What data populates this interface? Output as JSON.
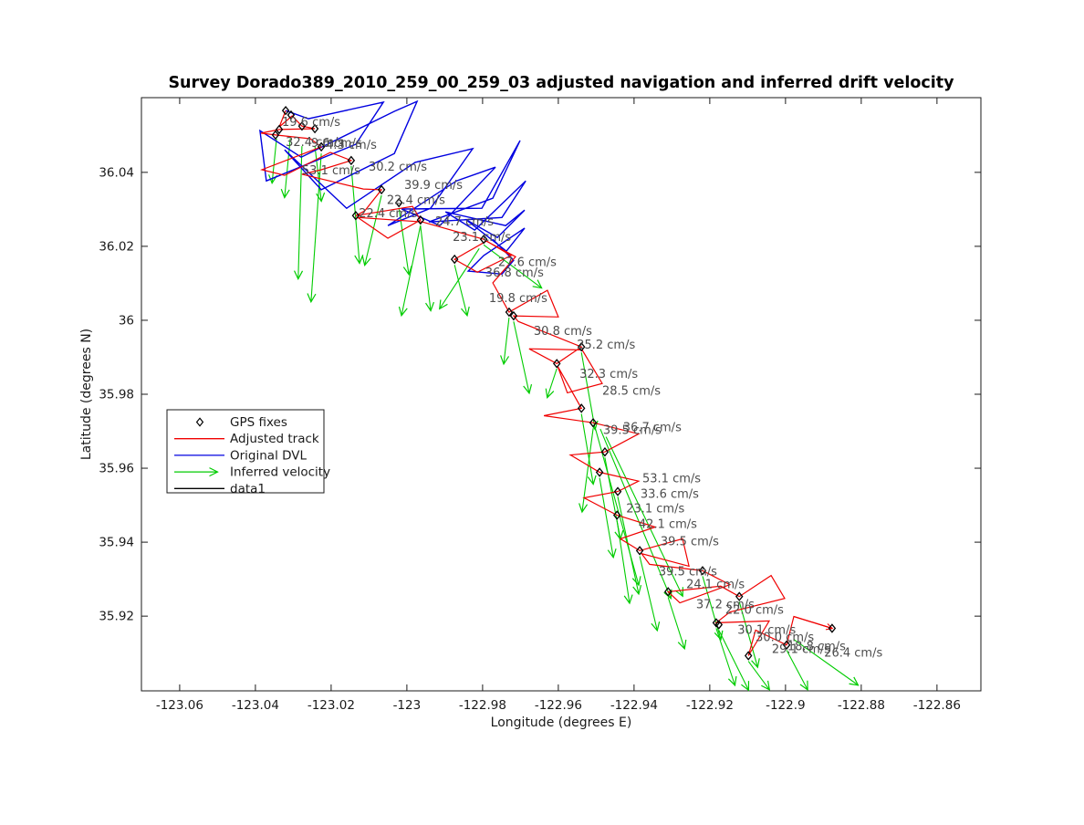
{
  "figure": {
    "title": "Survey Dorado389_2010_259_00_259_03 adjusted navigation and inferred drift velocity"
  },
  "chart_data": {
    "type": "line",
    "title": "Survey Dorado389_2010_259_00_259_03 adjusted navigation and inferred drift velocity",
    "xlabel": "Longitude (degrees E)",
    "ylabel": "Latitude (degrees N)",
    "xlim": [
      -123.0701,
      -122.8484
    ],
    "ylim": [
      35.8998,
      36.0602
    ],
    "grid": false,
    "xticks": [
      -123.06,
      -123.04,
      -123.02,
      -123.0,
      -122.98,
      -122.96,
      -122.94,
      -122.92,
      -122.9,
      -122.88,
      -122.86
    ],
    "xtick_labels": [
      "-123.06",
      "-123.04",
      "-123.02",
      "-123",
      "-122.98",
      "-122.96",
      "-122.94",
      "-122.92",
      "-122.9",
      "-122.88",
      "-122.86"
    ],
    "yticks": [
      36.04,
      36.02,
      36.0,
      35.98,
      35.96,
      35.94,
      35.92
    ],
    "ytick_labels": [
      "36.04",
      "36.02",
      "36",
      "35.98",
      "35.96",
      "35.94",
      "35.92"
    ],
    "colors": {
      "adjusted_track": "#f00000",
      "original_dvl": "#0000e0",
      "inferred_velocity": "#00cc00",
      "gps_fixes": "#000000",
      "data1": "#000000",
      "velocity_label": "#4d4d4d"
    },
    "legend": {
      "position": "middle-left",
      "entries": [
        {
          "label": "GPS fixes",
          "type": "marker",
          "color": "#000000"
        },
        {
          "label": "Adjusted track",
          "type": "line",
          "color": "#f00000"
        },
        {
          "label": "Original DVL",
          "type": "line",
          "color": "#0000e0"
        },
        {
          "label": "Inferred velocity",
          "type": "arrow",
          "color": "#00cc00"
        },
        {
          "label": "data1",
          "type": "line",
          "color": "#000000"
        }
      ]
    },
    "series": {
      "adjusted_track": {
        "name": "Adjusted track",
        "points": [
          [
            -123.032,
            36.0567
          ],
          [
            -123.0337,
            36.0523
          ],
          [
            -123.0303,
            36.0553
          ],
          [
            -123.0277,
            36.0525
          ],
          [
            -123.0243,
            36.0518
          ],
          [
            -123.0337,
            36.0516
          ],
          [
            -123.0385,
            36.0506
          ],
          [
            -123.0347,
            36.0501
          ],
          [
            -123.0255,
            36.0491
          ],
          [
            -123.0226,
            36.0469
          ],
          [
            -123.0383,
            36.0407
          ],
          [
            -123.0323,
            36.0392
          ],
          [
            -123.0202,
            36.0454
          ],
          [
            -123.0147,
            36.0432
          ],
          [
            -123.0226,
            36.0407
          ],
          [
            -123.0277,
            36.0395
          ],
          [
            -123.0115,
            36.0355
          ],
          [
            -123.0067,
            36.0353
          ],
          [
            -123.0111,
            36.0296
          ],
          [
            -123.0135,
            36.0283
          ],
          [
            -122.9985,
            36.0308
          ],
          [
            -122.9964,
            36.0271
          ],
          [
            -123.005,
            36.0222
          ],
          [
            -123.013,
            36.0278
          ],
          [
            -122.9959,
            36.0266
          ],
          [
            -122.9797,
            36.0219
          ],
          [
            -122.9725,
            36.0175
          ],
          [
            -122.9814,
            36.013
          ],
          [
            -122.9874,
            36.0165
          ],
          [
            -122.979,
            36.0214
          ],
          [
            -122.9713,
            36.0172
          ],
          [
            -122.9773,
            36.0101
          ],
          [
            -122.973,
            36.0022
          ],
          [
            -122.9629,
            36.0081
          ],
          [
            -122.96,
            36.0009
          ],
          [
            -122.9718,
            36.0012
          ],
          [
            -122.9706,
            35.9997
          ],
          [
            -122.9539,
            35.9928
          ],
          [
            -122.9604,
            35.9883
          ],
          [
            -122.9677,
            35.9923
          ],
          [
            -122.9537,
            35.992
          ],
          [
            -122.9484,
            35.9829
          ],
          [
            -122.9576,
            35.9804
          ],
          [
            -122.9602,
            35.9876
          ],
          [
            -122.9539,
            35.9762
          ],
          [
            -122.9638,
            35.9742
          ],
          [
            -122.9508,
            35.9723
          ],
          [
            -122.9388,
            35.9693
          ],
          [
            -122.9477,
            35.9644
          ],
          [
            -122.9568,
            35.9636
          ],
          [
            -122.9491,
            35.9589
          ],
          [
            -122.9388,
            35.9565
          ],
          [
            -122.9443,
            35.9537
          ],
          [
            -122.9532,
            35.952
          ],
          [
            -122.9445,
            35.9473
          ],
          [
            -122.9344,
            35.9441
          ],
          [
            -122.9436,
            35.9409
          ],
          [
            -122.9385,
            35.9377
          ],
          [
            -122.9272,
            35.9409
          ],
          [
            -122.9255,
            35.9335
          ],
          [
            -122.938,
            35.9369
          ],
          [
            -122.9359,
            35.934
          ],
          [
            -122.9219,
            35.9323
          ],
          [
            -122.9147,
            35.9285
          ],
          [
            -122.9279,
            35.9236
          ],
          [
            -122.931,
            35.9266
          ],
          [
            -122.9171,
            35.9281
          ],
          [
            -122.9122,
            35.9253
          ],
          [
            -122.9038,
            35.931
          ],
          [
            -122.9002,
            35.9248
          ],
          [
            -122.9147,
            35.9211
          ],
          [
            -122.9183,
            35.9182
          ],
          [
            -122.9043,
            35.9187
          ],
          [
            -122.9098,
            35.9093
          ],
          [
            -122.9079,
            35.9162
          ],
          [
            -122.8997,
            35.9122
          ],
          [
            -122.8978,
            35.9199
          ],
          [
            -122.8877,
            35.9167
          ]
        ]
      },
      "original_dvl": {
        "name": "Original DVL",
        "points": [
          [
            -123.032,
            36.0567
          ],
          [
            -123.026,
            36.0545
          ],
          [
            -123.0062,
            36.059
          ],
          [
            -123.0135,
            36.0476
          ],
          [
            -123.0371,
            36.0377
          ],
          [
            -123.0388,
            36.0513
          ],
          [
            -123.0279,
            36.0441
          ],
          [
            -123.0033,
            36.0565
          ],
          [
            -122.9973,
            36.0592
          ],
          [
            -123.0033,
            36.0451
          ],
          [
            -123.0226,
            36.0353
          ],
          [
            -123.0323,
            36.0461
          ],
          [
            -123.0159,
            36.0303
          ],
          [
            -122.9978,
            36.0427
          ],
          [
            -122.9826,
            36.0464
          ],
          [
            -122.9937,
            36.0303
          ],
          [
            -123.005,
            36.0256
          ],
          [
            -122.9869,
            36.0377
          ],
          [
            -122.9766,
            36.0414
          ],
          [
            -122.9913,
            36.0256
          ],
          [
            -123.0014,
            36.0301
          ],
          [
            -122.9802,
            36.0303
          ],
          [
            -122.9701,
            36.0486
          ],
          [
            -122.9773,
            36.033
          ],
          [
            -122.9942,
            36.0266
          ],
          [
            -122.9749,
            36.0278
          ],
          [
            -122.9686,
            36.0377
          ],
          [
            -122.9821,
            36.0244
          ],
          [
            -122.9898,
            36.0293
          ],
          [
            -122.9739,
            36.0256
          ],
          [
            -122.9689,
            36.0298
          ],
          [
            -122.9761,
            36.0224
          ],
          [
            -122.9845,
            36.0273
          ],
          [
            -122.9737,
            36.0187
          ],
          [
            -122.9689,
            36.0249
          ],
          [
            -122.9797,
            36.0175
          ],
          [
            -122.9838,
            36.0133
          ],
          [
            -122.9749,
            36.0125
          ],
          [
            -122.9718,
            36.0162
          ],
          [
            -122.9773,
            36.0219
          ]
        ]
      },
      "gps_fixes": {
        "name": "GPS fixes",
        "marker": "diamond",
        "points": [
          [
            -123.032,
            36.0567
          ],
          [
            -123.0306,
            36.0555
          ],
          [
            -123.0277,
            36.0525
          ],
          [
            -123.0243,
            36.0518
          ],
          [
            -123.0337,
            36.0516
          ],
          [
            -123.0347,
            36.0501
          ],
          [
            -123.0226,
            36.0469
          ],
          [
            -123.0147,
            36.0432
          ],
          [
            -123.0067,
            36.0353
          ],
          [
            -123.0021,
            36.0318
          ],
          [
            -123.0135,
            36.0283
          ],
          [
            -122.9964,
            36.0271
          ],
          [
            -122.9797,
            36.0219
          ],
          [
            -122.9874,
            36.0165
          ],
          [
            -122.973,
            36.0022
          ],
          [
            -122.9718,
            36.0012
          ],
          [
            -122.9539,
            35.9928
          ],
          [
            -122.9604,
            35.9883
          ],
          [
            -122.9539,
            35.9762
          ],
          [
            -122.9508,
            35.9723
          ],
          [
            -122.9477,
            35.9644
          ],
          [
            -122.9491,
            35.9589
          ],
          [
            -122.9443,
            35.9537
          ],
          [
            -122.9445,
            35.9473
          ],
          [
            -122.9385,
            35.9377
          ],
          [
            -122.9219,
            35.9323
          ],
          [
            -122.931,
            35.9266
          ],
          [
            -122.9122,
            35.9253
          ],
          [
            -122.9183,
            35.9182
          ],
          [
            -122.9176,
            35.9177
          ],
          [
            -122.9098,
            35.9093
          ],
          [
            -122.8997,
            35.9122
          ],
          [
            -122.8877,
            35.9167
          ]
        ]
      },
      "inferred_velocity": {
        "name": "Inferred velocity",
        "arrows": [
          [
            -123.0308,
            36.0491,
            -123.0323,
            36.0333
          ],
          [
            -123.0277,
            36.0471,
            -123.0287,
            36.0113
          ],
          [
            -123.0243,
            36.0471,
            -123.0226,
            36.0323
          ],
          [
            -123.0344,
            36.0491,
            -123.0356,
            36.0372
          ],
          [
            -123.0226,
            36.0451,
            -123.0253,
            36.0051
          ],
          [
            -123.0147,
            36.0417,
            -123.0125,
            36.0155
          ],
          [
            -123.0067,
            36.0338,
            -123.0111,
            36.015
          ],
          [
            -123.0021,
            36.0303,
            -122.9995,
            36.0125
          ],
          [
            -122.9964,
            36.0256,
            -122.9937,
            36.0027
          ],
          [
            -122.9964,
            36.0256,
            -123.0014,
            36.0014
          ],
          [
            -122.9797,
            36.0204,
            -122.9645,
            36.0088
          ],
          [
            -122.9874,
            36.015,
            -122.9841,
            36.0014
          ],
          [
            -122.9809,
            36.0194,
            -122.9913,
            36.0032
          ],
          [
            -122.973,
            36.0007,
            -122.9744,
            35.9883
          ],
          [
            -122.9718,
            35.9997,
            -122.9677,
            35.9804
          ],
          [
            -122.9539,
            35.9913,
            -122.9503,
            35.9706
          ],
          [
            -122.9604,
            35.9869,
            -122.9629,
            35.9792
          ],
          [
            -122.9539,
            35.9747,
            -122.9508,
            35.9558
          ],
          [
            -122.9508,
            35.9708,
            -122.9537,
            35.9483
          ],
          [
            -122.9477,
            35.9629,
            -122.9436,
            35.9409
          ],
          [
            -122.9491,
            35.9574,
            -122.9455,
            35.936
          ],
          [
            -122.9443,
            35.9523,
            -122.9388,
            35.9261
          ],
          [
            -122.9445,
            35.9458,
            -122.9412,
            35.9236
          ],
          [
            -122.9385,
            35.9362,
            -122.9339,
            35.9162
          ],
          [
            -122.9219,
            35.9308,
            -122.9171,
            35.9138
          ],
          [
            -122.931,
            35.9251,
            -122.9267,
            35.9113
          ],
          [
            -122.9122,
            35.9239,
            -122.9074,
            35.9063
          ],
          [
            -122.9183,
            35.9167,
            -122.9134,
            35.9014
          ],
          [
            -122.9176,
            35.9162,
            -122.9098,
            35.9001
          ],
          [
            -122.9098,
            35.9078,
            -122.9043,
            35.9002
          ],
          [
            -122.8997,
            35.9108,
            -122.8942,
            35.9002
          ],
          [
            -122.8978,
            35.9137,
            -122.8809,
            35.9014
          ],
          [
            -122.9489,
            35.9706,
            -122.9303,
            35.9249
          ],
          [
            -122.9474,
            35.9685,
            -122.9272,
            35.9255
          ],
          [
            -122.9503,
            35.9711,
            -122.9388,
            35.9285
          ]
        ]
      },
      "data1": {
        "name": "data1",
        "points": []
      }
    },
    "velocity_labels": [
      {
        "text": "19.6 cm/s",
        "lon": -123.033,
        "lat": 36.0535
      },
      {
        "text": "32.4 cm/s",
        "lon": -123.032,
        "lat": 36.0481
      },
      {
        "text": "9.6 cm/s",
        "lon": -123.0253,
        "lat": 36.0479
      },
      {
        "text": "4.3 cm/s",
        "lon": -123.0214,
        "lat": 36.0474
      },
      {
        "text": "53.1 cm/s",
        "lon": -123.0277,
        "lat": 36.0404
      },
      {
        "text": "30.2 cm/s",
        "lon": -123.0101,
        "lat": 36.0414
      },
      {
        "text": "39.9 cm/s",
        "lon": -123.0007,
        "lat": 36.0365
      },
      {
        "text": "22.4 cm/s",
        "lon": -123.0053,
        "lat": 36.0325
      },
      {
        "text": "22.4 cm/s",
        "lon": -123.0127,
        "lat": 36.0288
      },
      {
        "text": "24.7 cm/s",
        "lon": -122.9925,
        "lat": 36.0266
      },
      {
        "text": "23.1 cm/s",
        "lon": -122.9879,
        "lat": 36.0224
      },
      {
        "text": "27.6 cm/s",
        "lon": -122.9759,
        "lat": 36.0157
      },
      {
        "text": "36.8 cm/s",
        "lon": -122.9793,
        "lat": 36.0128
      },
      {
        "text": "19.8 cm/s",
        "lon": -122.9783,
        "lat": 36.0059
      },
      {
        "text": "30.8 cm/s",
        "lon": -122.9665,
        "lat": 35.997
      },
      {
        "text": "25.2 cm/s",
        "lon": -122.9551,
        "lat": 35.9933
      },
      {
        "text": "32.3 cm/s",
        "lon": -122.9544,
        "lat": 35.9854
      },
      {
        "text": "28.5 cm/s",
        "lon": -122.9484,
        "lat": 35.9809
      },
      {
        "text": "39.5 cm/s",
        "lon": -122.9482,
        "lat": 35.9703
      },
      {
        "text": "36.7 cm/s",
        "lon": -122.9429,
        "lat": 35.971
      },
      {
        "text": "53.1 cm/s",
        "lon": -122.9378,
        "lat": 35.9572
      },
      {
        "text": "33.6 cm/s",
        "lon": -122.9383,
        "lat": 35.953
      },
      {
        "text": "23.1 cm/s",
        "lon": -122.9421,
        "lat": 35.949
      },
      {
        "text": "42.1 cm/s",
        "lon": -122.9388,
        "lat": 35.9448
      },
      {
        "text": "39.5 cm/s",
        "lon": -122.933,
        "lat": 35.9401
      },
      {
        "text": "39.5 cm/s",
        "lon": -122.9335,
        "lat": 35.932
      },
      {
        "text": "24.1 cm/s",
        "lon": -122.9262,
        "lat": 35.9285
      },
      {
        "text": "37.2 cm/s",
        "lon": -122.9236,
        "lat": 35.9231
      },
      {
        "text": "22.0 cm/s",
        "lon": -122.9159,
        "lat": 35.9216
      },
      {
        "text": "30.1 cm/s",
        "lon": -122.9127,
        "lat": 35.9162
      },
      {
        "text": "30.0 cm/s",
        "lon": -122.9079,
        "lat": 35.9142
      },
      {
        "text": "29.1 cm/s",
        "lon": -122.9036,
        "lat": 35.911
      },
      {
        "text": "18.8 cm/s",
        "lon": -122.8995,
        "lat": 35.9118
      },
      {
        "text": "26.4 cm/s",
        "lon": -122.8898,
        "lat": 35.91
      }
    ]
  }
}
